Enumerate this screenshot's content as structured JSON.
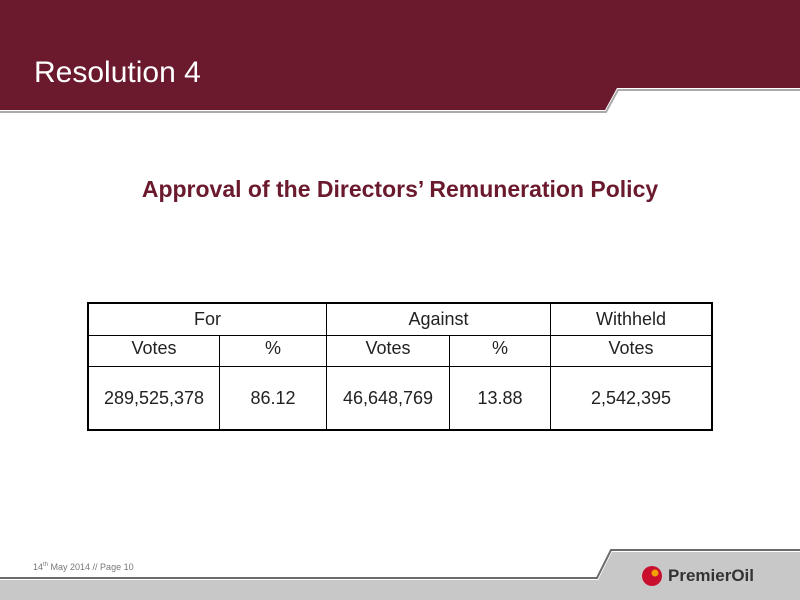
{
  "header": {
    "title": "Resolution 4"
  },
  "subtitle": "Approval of the Directors’ Remuneration Policy",
  "table": {
    "groups": [
      "For",
      "Against",
      "Withheld"
    ],
    "subheaders": [
      "Votes",
      "%",
      "Votes",
      "%",
      "Votes"
    ],
    "rows": [
      [
        "289,525,378",
        "86.12",
        "46,648,769",
        "13.88",
        "2,542,395"
      ]
    ]
  },
  "footer": {
    "day": "14",
    "suffix": "th",
    "rest": " May 2014 // Page 10"
  },
  "logo": {
    "text": "PremierOil"
  }
}
